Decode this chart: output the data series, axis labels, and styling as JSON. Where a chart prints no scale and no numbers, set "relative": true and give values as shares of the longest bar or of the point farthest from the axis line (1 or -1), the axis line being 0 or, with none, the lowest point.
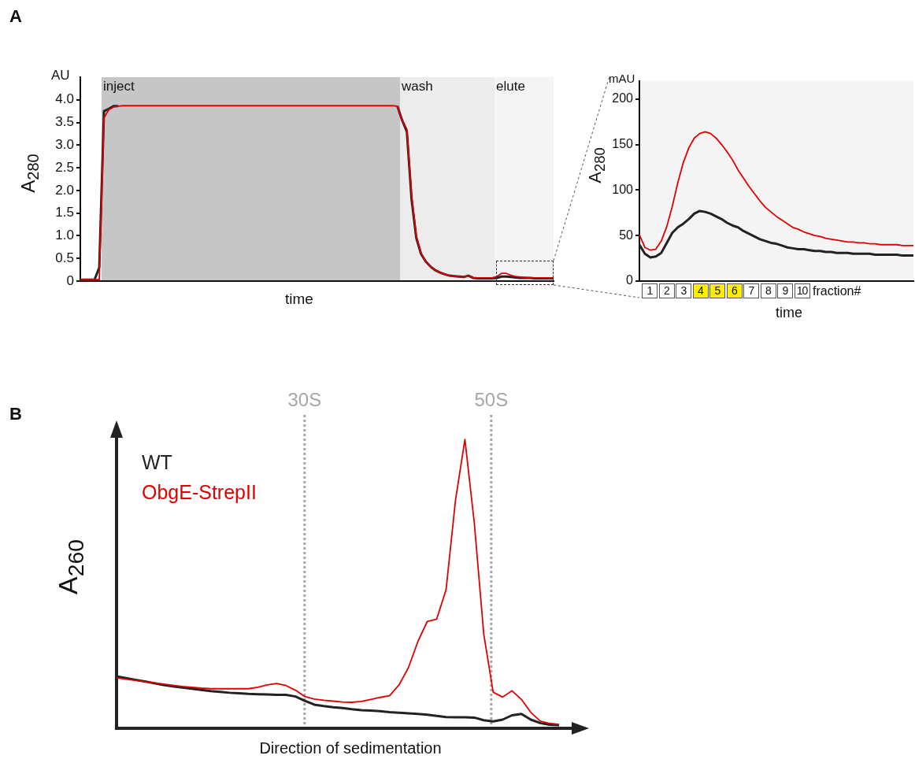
{
  "chart_data": [
    {
      "type": "line",
      "annotations": [
        "A",
        "AU",
        "inject",
        "wash",
        "elute"
      ],
      "xlabel": "time",
      "ylabel": "A$_{280}$",
      "ylim": [
        0,
        4.5
      ],
      "yticks": [
        0,
        0.5,
        {
          "value": 1,
          "label": "1.0"
        },
        1.5,
        {
          "value": 2,
          "label": "2.0"
        },
        2.5,
        {
          "value": 3,
          "label": "3.0"
        },
        3.5,
        {
          "value": 4,
          "label": "4.0"
        }
      ],
      "tick_labels": "y",
      "categories": [
        null,
        null,
        null,
        null,
        null,
        null,
        null,
        null,
        null,
        null,
        null,
        null,
        null,
        null,
        null,
        null,
        null,
        null,
        null,
        null,
        null,
        null,
        null,
        null,
        null,
        null,
        null,
        null,
        null,
        null,
        null,
        null,
        null,
        null,
        null,
        null,
        null,
        null,
        null,
        null,
        null,
        null,
        null,
        null,
        null,
        null,
        null,
        null,
        null,
        null,
        null,
        null,
        null,
        null,
        null,
        null,
        null,
        null,
        null,
        null,
        null,
        null,
        null,
        null,
        null,
        null,
        null,
        null,
        null,
        null,
        null,
        null,
        null,
        null,
        null,
        null,
        null,
        null,
        null,
        null,
        null,
        null,
        null,
        null,
        null,
        null,
        null,
        null,
        null,
        null,
        null,
        null,
        null,
        null,
        null,
        null,
        null,
        null,
        null,
        null,
        null
      ],
      "series": [
        {
          "color": "#222222",
          "values": [
            0.03,
            0.03,
            0.03,
            0.03,
            0.3,
            3.75,
            3.8,
            3.86,
            3.86,
            null,
            null,
            null,
            null,
            null,
            null,
            null,
            null,
            null,
            null,
            null,
            null,
            null,
            null,
            null,
            null,
            null,
            null,
            null,
            null,
            null,
            null,
            null,
            null,
            null,
            null,
            null,
            null,
            null,
            null,
            null,
            null,
            null,
            null,
            null,
            null,
            null,
            null,
            null,
            null,
            null,
            null,
            null,
            null,
            null,
            null,
            null,
            null,
            null,
            null,
            null,
            null,
            null,
            null,
            null,
            null,
            null,
            null,
            3.86,
            3.55,
            3.3,
            1.8,
            0.95,
            0.6,
            0.43,
            0.32,
            0.24,
            0.19,
            0.15,
            0.12,
            0.11,
            0.1,
            0.09,
            0.12,
            0.07,
            0.06,
            0.06,
            0.06,
            0.06,
            0.07,
            0.1,
            0.1,
            0.09,
            0.08,
            0.07,
            0.07,
            0.07,
            0.06,
            0.06,
            0.06,
            0.06,
            0.06
          ]
        },
        {
          "color": "#e00000",
          "values": [
            0.03,
            0.03,
            0.03,
            0.03,
            0.03,
            3.6,
            3.78,
            3.84,
            3.86,
            3.87,
            3.87,
            3.87,
            3.87,
            3.87,
            3.87,
            3.87,
            3.87,
            3.87,
            3.87,
            3.87,
            3.87,
            3.87,
            3.87,
            3.87,
            3.87,
            3.87,
            3.87,
            3.87,
            3.87,
            3.87,
            3.87,
            3.87,
            3.87,
            3.87,
            3.87,
            3.87,
            3.87,
            3.87,
            3.87,
            3.87,
            3.87,
            3.87,
            3.87,
            3.87,
            3.87,
            3.87,
            3.87,
            3.87,
            3.87,
            3.87,
            3.87,
            3.87,
            3.87,
            3.87,
            3.87,
            3.87,
            3.87,
            3.87,
            3.87,
            3.87,
            3.87,
            3.87,
            3.87,
            3.87,
            3.87,
            3.87,
            3.87,
            3.86,
            3.55,
            3.35,
            1.9,
            1.0,
            0.62,
            0.43,
            0.32,
            0.24,
            0.19,
            0.15,
            0.12,
            0.11,
            0.1,
            0.09,
            0.12,
            0.07,
            0.07,
            0.07,
            0.07,
            0.07,
            0.1,
            0.17,
            0.17,
            0.13,
            0.1,
            0.09,
            0.08,
            0.07,
            0.07,
            0.07,
            0.07,
            0.07,
            0.07
          ]
        }
      ]
    },
    {
      "type": "line",
      "annotations": [
        "mAU",
        "1",
        "2",
        "3",
        "4",
        "5",
        "6",
        "7",
        "8",
        "9",
        "10",
        "fraction#"
      ],
      "xlabel": "time",
      "ylabel": "A$_{280}$",
      "ylim": [
        0,
        220
      ],
      "yticks": [
        0,
        50,
        100,
        150,
        200
      ],
      "tick_labels": "y",
      "categories": [
        null,
        null,
        null,
        null,
        null,
        null,
        null,
        null,
        null,
        null,
        null,
        null,
        null,
        null,
        null,
        null,
        null,
        null,
        null,
        null,
        null,
        null,
        null,
        null,
        null,
        null,
        null,
        null,
        null,
        null,
        null,
        null,
        null,
        null,
        null,
        null,
        null,
        null,
        null,
        null,
        null,
        null,
        null,
        null,
        null,
        null,
        null,
        null,
        null,
        null,
        null
      ],
      "series": [
        {
          "color": "#222222",
          "values": [
            40,
            30,
            26,
            27,
            31,
            42,
            53,
            59,
            63,
            68,
            74,
            77,
            76,
            74,
            71,
            68,
            64,
            61,
            59,
            55,
            52,
            49,
            46,
            44,
            42,
            41,
            39,
            37,
            36,
            35,
            35,
            34,
            33,
            33,
            32,
            32,
            31,
            31,
            31,
            30,
            30,
            30,
            30,
            29,
            29,
            29,
            29,
            29,
            28,
            28,
            28
          ]
        },
        {
          "color": "#e00000",
          "values": [
            51,
            37,
            34,
            35,
            44,
            60,
            82,
            108,
            130,
            146,
            157,
            162,
            164,
            162,
            157,
            150,
            142,
            133,
            122,
            113,
            104,
            96,
            88,
            81,
            76,
            71,
            67,
            63,
            59,
            57,
            54,
            52,
            50,
            49,
            47,
            46,
            45,
            44,
            43,
            43,
            42,
            42,
            41,
            41,
            40,
            40,
            40,
            40,
            39,
            39,
            39
          ]
        }
      ]
    },
    {
      "type": "line",
      "relative": true,
      "annotations": [
        "B"
      ],
      "xlabel": "Direction of sedimentation",
      "ylabel": "A$_{260}$",
      "tick_labels": false,
      "categories": [
        null,
        null,
        null,
        null,
        null,
        null,
        null,
        null,
        null,
        null,
        null,
        null,
        null,
        null,
        null,
        null,
        null,
        null,
        null,
        null,
        null,
        null,
        null,
        null,
        null,
        null,
        null,
        null,
        null,
        null,
        null,
        null,
        null,
        null,
        null,
        null,
        null,
        null,
        null,
        null,
        null,
        null,
        null,
        null,
        null,
        null,
        null,
        null
      ],
      "ref_lines": [
        {
          "axis": "x",
          "label": "30S",
          "color": "#a6a6a6",
          "line_style": "dotted"
        },
        {
          "axis": "x",
          "label": "50S",
          "color": "#a6a6a6",
          "line_style": "dotted"
        }
      ],
      "series": [
        {
          "name": "WT",
          "color": "#222222",
          "values": [
            0.18,
            0.174,
            0.168,
            0.162,
            0.156,
            0.15,
            0.145,
            0.141,
            0.137,
            0.133,
            0.129,
            0.126,
            0.123,
            0.121,
            0.119,
            0.118,
            0.117,
            0.116,
            0.116,
            0.11,
            0.095,
            0.082,
            0.077,
            0.073,
            0.07,
            0.066,
            0.063,
            0.061,
            0.059,
            0.056,
            0.054,
            0.052,
            0.05,
            0.047,
            0.043,
            0.039,
            0.038,
            0.038,
            0.037,
            0.028,
            0.024,
            0.03,
            0.045,
            0.05,
            0.03,
            0.018,
            0.012,
            0.011
          ]
        },
        {
          "name": "ObgE-StrepII",
          "color": "#e00000",
          "values": [
            0.175,
            0.17,
            0.166,
            0.161,
            0.157,
            0.153,
            0.149,
            0.145,
            0.142,
            0.139,
            0.137,
            0.137,
            0.137,
            0.137,
            0.137,
            0.142,
            0.15,
            0.155,
            0.148,
            0.132,
            0.11,
            0.101,
            0.097,
            0.094,
            0.091,
            0.09,
            0.093,
            0.1,
            0.107,
            0.113,
            0.15,
            0.21,
            0.3,
            0.37,
            0.378,
            0.48,
            0.79,
            1,
            0.71,
            0.326,
            0.125,
            0.108,
            0.13,
            0.1,
            0.055,
            0.025,
            0.017,
            0.013
          ]
        }
      ]
    }
  ]
}
